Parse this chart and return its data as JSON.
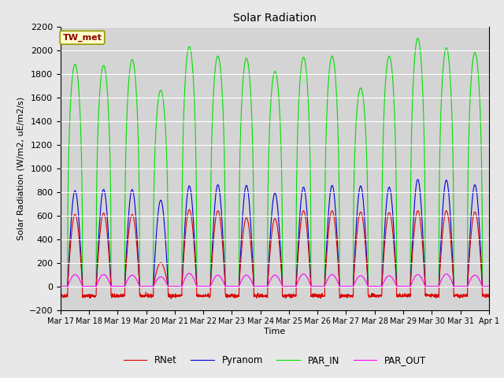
{
  "title": "Solar Radiation",
  "ylabel": "Solar Radiation (W/m2, uE/m2/s)",
  "xlabel": "Time",
  "ylim": [
    -200,
    2200
  ],
  "yticks": [
    -200,
    0,
    200,
    400,
    600,
    800,
    1000,
    1200,
    1400,
    1600,
    1800,
    2000,
    2200
  ],
  "colors": {
    "RNet": "#dd0000",
    "Pyranom": "#0000dd",
    "PAR_IN": "#00dd00",
    "PAR_OUT": "#ff00ff"
  },
  "legend_label": "TW_met",
  "fig_bg_color": "#e8e8e8",
  "plot_bg_color": "#d4d4d4",
  "n_days": 15,
  "start_day": 17,
  "points_per_day": 144,
  "par_in_peaks": [
    1880,
    1870,
    1920,
    1660,
    2030,
    1950,
    1930,
    1820,
    1940,
    1950,
    1680,
    1950,
    2100,
    2020,
    1980
  ],
  "pyranom_peaks": [
    810,
    820,
    820,
    730,
    850,
    860,
    855,
    790,
    840,
    855,
    850,
    840,
    905,
    900,
    860
  ],
  "rnet_peaks": [
    610,
    620,
    610,
    200,
    650,
    640,
    580,
    575,
    640,
    640,
    630,
    625,
    640,
    640,
    630
  ],
  "par_out_peaks": [
    100,
    100,
    95,
    80,
    110,
    95,
    95,
    95,
    105,
    100,
    90,
    90,
    100,
    105,
    95
  ],
  "rnet_night": -80
}
